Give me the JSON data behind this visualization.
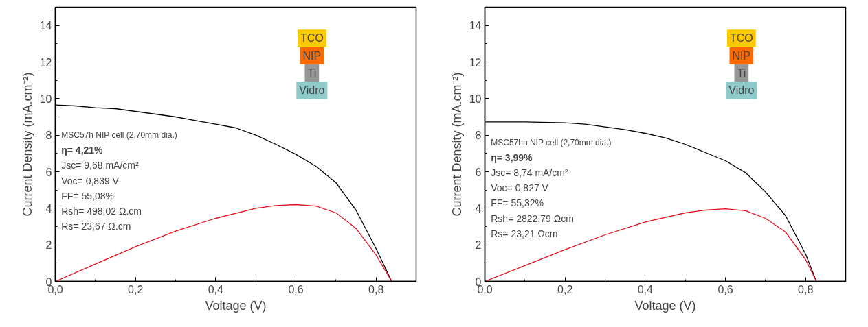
{
  "chart_data": [
    {
      "type": "line",
      "xlabel": "Voltage (V)",
      "ylabel": "Current Density (mA.cm⁻²)",
      "xlim": [
        0,
        0.9
      ],
      "ylim": [
        0,
        15
      ],
      "xticks": [
        {
          "value": 0,
          "label": "0,0"
        },
        {
          "value": 0.2,
          "label": "0,2"
        },
        {
          "value": 0.4,
          "label": "0,4"
        },
        {
          "value": 0.6,
          "label": "0,6"
        },
        {
          "value": 0.8,
          "label": "0,8"
        }
      ],
      "yticks": [
        0,
        2,
        4,
        6,
        8,
        10,
        12,
        14
      ],
      "series": [
        {
          "color": "#000000",
          "x": [
            0,
            0.05,
            0.1,
            0.15,
            0.2,
            0.25,
            0.3,
            0.35,
            0.4,
            0.45,
            0.5,
            0.55,
            0.6,
            0.65,
            0.7,
            0.75,
            0.8,
            0.839
          ],
          "values": [
            9.65,
            9.6,
            9.5,
            9.45,
            9.3,
            9.15,
            9.0,
            8.8,
            8.6,
            8.4,
            8.0,
            7.5,
            6.95,
            6.3,
            5.4,
            3.9,
            1.8,
            0
          ]
        },
        {
          "color": "#e0101e",
          "x": [
            0,
            0.1,
            0.2,
            0.3,
            0.4,
            0.5,
            0.55,
            0.6,
            0.65,
            0.7,
            0.75,
            0.8,
            0.839
          ],
          "values": [
            0,
            0.95,
            1.9,
            2.75,
            3.45,
            4.0,
            4.15,
            4.2,
            4.12,
            3.75,
            2.9,
            1.45,
            0
          ]
        }
      ],
      "annotations": [
        "MSC57h NIP cell (2,70mm dia.)",
        "η= 4,21%",
        "Jsc=  9,68 mA/cm²",
        "Voc= 0,839 V",
        "FF= 55,08%",
        "Rsh= 498,02 Ω.cm",
        "Rs= 23,67 Ω.cm",
        "TCO",
        "NIP",
        "Ti",
        "Vidro"
      ],
      "grid": false,
      "marker": "none",
      "line_style": "solid"
    },
    {
      "type": "line",
      "xlabel": "Voltage (V)",
      "ylabel": "Current Density (mA.cm⁻²)",
      "xlim": [
        0,
        0.9
      ],
      "ylim": [
        0,
        15
      ],
      "xticks": [
        {
          "value": 0,
          "label": "0,0"
        },
        {
          "value": 0.2,
          "label": "0,2"
        },
        {
          "value": 0.4,
          "label": "0,4"
        },
        {
          "value": 0.6,
          "label": "0,6"
        },
        {
          "value": 0.8,
          "label": "0,8"
        }
      ],
      "yticks": [
        0,
        2,
        4,
        6,
        8,
        10,
        12,
        14
      ],
      "series": [
        {
          "color": "#000000",
          "x": [
            0,
            0.1,
            0.2,
            0.25,
            0.3,
            0.35,
            0.4,
            0.45,
            0.5,
            0.55,
            0.6,
            0.65,
            0.7,
            0.75,
            0.8,
            0.827
          ],
          "values": [
            8.72,
            8.72,
            8.68,
            8.6,
            8.45,
            8.3,
            8.1,
            7.85,
            7.5,
            7.05,
            6.6,
            5.95,
            4.9,
            3.6,
            1.5,
            0
          ]
        },
        {
          "color": "#e0101e",
          "x": [
            0,
            0.1,
            0.2,
            0.3,
            0.4,
            0.5,
            0.55,
            0.6,
            0.65,
            0.7,
            0.75,
            0.8,
            0.827
          ],
          "values": [
            0,
            0.87,
            1.74,
            2.55,
            3.25,
            3.75,
            3.9,
            3.97,
            3.87,
            3.45,
            2.7,
            1.2,
            0
          ]
        }
      ],
      "annotations": [
        "MSC57hn NIP cell (2,70mm dia.)",
        "η= 3,99%",
        "Jsc=  8,74 mA/cm²",
        "Voc= 0,827 V",
        "FF= 55,32%",
        "Rsh= 2822,79 Ωcm",
        "Rs= 23,21 Ωcm",
        "TCO",
        "NIP",
        "Ti",
        "Vidro"
      ],
      "grid": false,
      "marker": "none",
      "line_style": "solid"
    }
  ]
}
